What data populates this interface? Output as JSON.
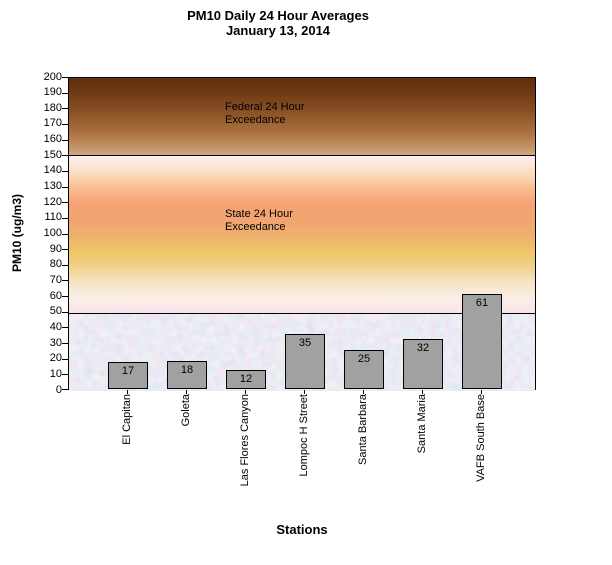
{
  "header": {
    "title_line1": "PM10 Daily 24 Hour Averages",
    "title_line2": "January 13, 2014"
  },
  "chart_data": {
    "type": "bar",
    "title": "PM10 Daily 24 Hour Averages",
    "subtitle": "January 13, 2014",
    "categories": [
      "El Capitan",
      "Goleta",
      "Las Flores Canyon",
      "Lompoc H Street",
      "Santa Barbara",
      "Santa Maria",
      "VAFB South Base"
    ],
    "values": [
      17,
      18,
      12,
      35,
      25,
      32,
      61
    ],
    "xlabel": "Stations",
    "ylabel": "PM10 (ug/m3)",
    "ylim": [
      0,
      200
    ],
    "yticks": [
      0,
      10,
      20,
      30,
      40,
      50,
      60,
      70,
      80,
      90,
      100,
      110,
      120,
      130,
      140,
      150,
      160,
      170,
      180,
      190,
      200
    ],
    "grid": false,
    "legend": "none",
    "bar_data_labels_shown": true,
    "threshold_lines": [
      {
        "level": 50,
        "meaning": "state 24 hour standard"
      },
      {
        "level": 150,
        "meaning": "federal 24 hour standard"
      }
    ],
    "zones": [
      {
        "name": "federal-exceedance",
        "from": 150,
        "to": 200,
        "color_top": "#5f2e0c",
        "color_bottom": "#d3a77f"
      },
      {
        "name": "state-exceedance",
        "from": 50,
        "to": 150,
        "color_top": "#fdeeee",
        "color_mid": "#f5a276",
        "color_bottom": "#f9e3ea"
      },
      {
        "name": "below-standard",
        "from": 0,
        "to": 50,
        "color": "#c9dcec",
        "texture": "blue-pink-mottle"
      }
    ],
    "annotations": [
      {
        "lines": [
          "Federal 24 Hour",
          "Exceedance"
        ],
        "y_level": 185
      },
      {
        "lines": [
          "State 24 Hour",
          "Exceedance"
        ],
        "y_level": 115
      }
    ],
    "bar_color": "#a1a1a1",
    "bar_border_color": "#000000",
    "axis_color": "#000000",
    "background_color": "#ffffff"
  }
}
